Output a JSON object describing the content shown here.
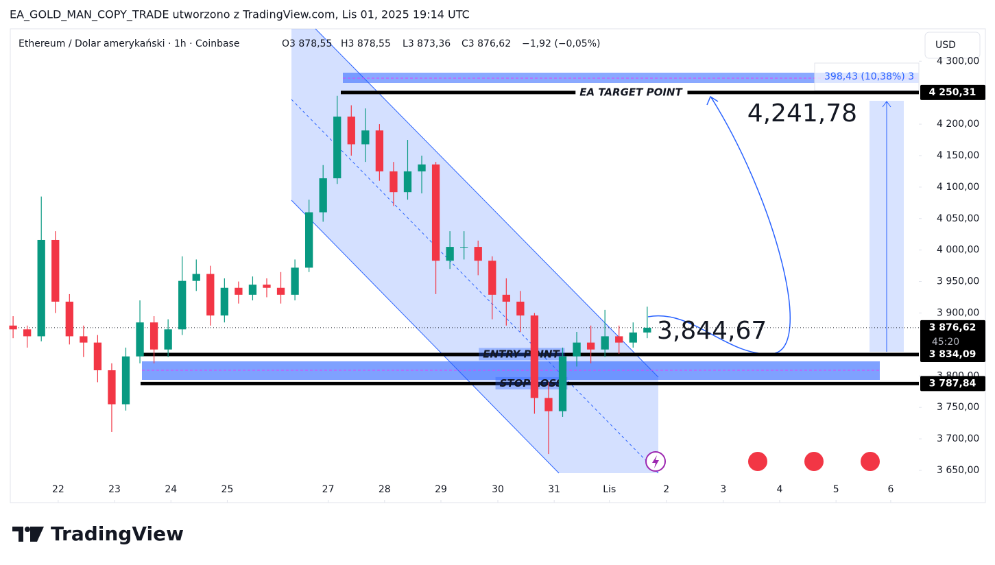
{
  "header": {
    "title": "EA_GOLD_MAN_COPY_TRADE utworzono z TradingView.com, Lis 01, 2025 19:14 UTC"
  },
  "chart_data": {
    "type": "candlestick",
    "legend": {
      "symbol": "Ethereum / Dolar amerykański · 1h · Coinbase",
      "o": "O",
      "open": "3 878,55",
      "h": "H",
      "high": "3 878,55",
      "l": "L",
      "low": "3 873,36",
      "c": "C",
      "close": "3 876,62",
      "change": "−1,92 (−0,05%)"
    },
    "currency": "USD",
    "up_color": "#089981",
    "down_color": "#f23645",
    "x": [
      -0.8,
      -0.55,
      -0.3,
      -0.05,
      0.2,
      0.45,
      0.7,
      0.95,
      1.2,
      1.45,
      1.7,
      1.95,
      2.2,
      2.45,
      2.7,
      2.95,
      3.2,
      3.45,
      3.7,
      3.95,
      4.2,
      4.45,
      4.7,
      4.95,
      5.2,
      5.45,
      5.7,
      5.95,
      6.2,
      6.45,
      6.7,
      6.95,
      7.2,
      7.45,
      7.7,
      7.95,
      8.2,
      8.45,
      8.7,
      8.95,
      9.2,
      9.45,
      9.7,
      9.95,
      10.2,
      10.45
    ],
    "open": [
      3880,
      3874,
      3863,
      4016,
      3918,
      3863,
      3853,
      3809,
      3755,
      3831,
      3885,
      3842,
      3874,
      3951,
      3962,
      3896,
      3940,
      3929,
      3945,
      3940,
      3929,
      3972,
      4060,
      4114,
      4212,
      4168,
      4190,
      4125,
      4092,
      4125,
      4136,
      3983,
      4005,
      4005,
      3983,
      3929,
      3918,
      3896,
      3765,
      3744,
      3831,
      3853,
      3842,
      3863,
      3853,
      3869
    ],
    "high": [
      3895,
      3880,
      4085,
      4030,
      3930,
      3880,
      3865,
      3820,
      3845,
      3920,
      3895,
      3890,
      3990,
      3985,
      3975,
      3955,
      3950,
      3958,
      3955,
      3965,
      3985,
      4080,
      4135,
      4245,
      4230,
      4225,
      4200,
      4140,
      4175,
      4150,
      4140,
      4030,
      4030,
      4015,
      3990,
      3955,
      3935,
      3900,
      3790,
      3845,
      3870,
      3880,
      3905,
      3880,
      3885,
      3910
    ],
    "low": [
      3860,
      3845,
      3855,
      3900,
      3850,
      3830,
      3790,
      3711,
      3745,
      3820,
      3820,
      3830,
      3865,
      3935,
      3880,
      3885,
      3915,
      3920,
      3925,
      3915,
      3920,
      3965,
      4045,
      4105,
      4150,
      4140,
      4110,
      4070,
      4080,
      4090,
      3930,
      3970,
      3985,
      3960,
      3890,
      3880,
      3870,
      3740,
      3676,
      3735,
      3815,
      3820,
      3830,
      3835,
      3845,
      3860
    ],
    "close": [
      3874,
      3863,
      4016,
      3918,
      3863,
      3853,
      3809,
      3755,
      3831,
      3885,
      3842,
      3874,
      3951,
      3962,
      3896,
      3940,
      3929,
      3945,
      3940,
      3929,
      3972,
      4060,
      4114,
      4212,
      4168,
      4190,
      4125,
      4092,
      4125,
      4136,
      3983,
      4005,
      4005,
      3983,
      3929,
      3918,
      3896,
      3765,
      3744,
      3831,
      3853,
      3842,
      3863,
      3853,
      3869,
      3876.62
    ],
    "xlim": [
      -0.85,
      15.27
    ],
    "xticks": [
      {
        "value": 0,
        "label": "22"
      },
      {
        "value": 1,
        "label": "23"
      },
      {
        "value": 2,
        "label": "24"
      },
      {
        "value": 3,
        "label": "25"
      },
      {
        "value": 4.79,
        "label": "27"
      },
      {
        "value": 5.79,
        "label": "28"
      },
      {
        "value": 6.79,
        "label": "29"
      },
      {
        "value": 7.8,
        "label": "30"
      },
      {
        "value": 8.8,
        "label": "31"
      },
      {
        "value": 9.78,
        "label": "Lis"
      },
      {
        "value": 10.79,
        "label": "2"
      },
      {
        "value": 11.8,
        "label": "3"
      },
      {
        "value": 12.8,
        "label": "4"
      },
      {
        "value": 13.8,
        "label": "5"
      },
      {
        "value": 14.77,
        "label": "6"
      }
    ],
    "ylim": [
      3634.7,
      4351.5
    ],
    "yticks": [
      {
        "value": 3650,
        "label": "3 650,00"
      },
      {
        "value": 3700,
        "label": "3 700,00"
      },
      {
        "value": 3750,
        "label": "3 750,00"
      },
      {
        "value": 3800,
        "label": "3 800,00"
      },
      {
        "value": 3900,
        "label": "3 900,00"
      },
      {
        "value": 3950,
        "label": "3 950,00"
      },
      {
        "value": 4000,
        "label": "4 000,00"
      },
      {
        "value": 4050,
        "label": "4 050,00"
      },
      {
        "value": 4100,
        "label": "4 100,00"
      },
      {
        "value": 4150,
        "label": "4 150,00"
      },
      {
        "value": 4200,
        "label": "4 200,00"
      },
      {
        "value": 4300,
        "label": "4 300,00"
      }
    ],
    "levels": [
      {
        "name": "EA TARGET POINT",
        "value": 4250.31,
        "label": "4 250,31"
      },
      {
        "name": "ENTRY POINT",
        "value": 3834.09,
        "label": "3 834,09"
      },
      {
        "name": "STOP LOSS",
        "value": 3787.84,
        "label": "3 787,84"
      }
    ],
    "last_price": {
      "value": 3876.62,
      "label": "3 876,62",
      "countdown": "45:20"
    },
    "annotations": {
      "target_text": "4,241,78",
      "current_text": "3,844,67",
      "measure": "398,43 (10,38%) 3"
    }
  },
  "footer": {
    "brand": "TradingView"
  }
}
